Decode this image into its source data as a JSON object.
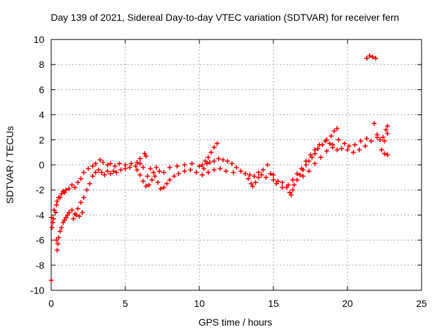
{
  "chart_data": {
    "type": "scatter",
    "title": "Day 139 of 2021, Sidereal Day-to-day VTEC variation (SDTVAR) for receiver fern",
    "xlabel": "GPS time / hours",
    "ylabel": "SDTVAR / TECUs",
    "xlim": [
      0,
      25
    ],
    "ylim": [
      -10,
      10
    ],
    "xticks": [
      0,
      5,
      10,
      15,
      20,
      25
    ],
    "yticks": [
      -10,
      -8,
      -6,
      -4,
      -2,
      0,
      2,
      4,
      6,
      8,
      10
    ],
    "xtick_labels": [
      "0",
      "5",
      "10",
      "15",
      "20",
      "25"
    ],
    "ytick_labels": [
      "-10",
      "-8",
      "-6",
      "-4",
      "-2",
      "0",
      "2",
      "4",
      "6",
      "8",
      "10"
    ],
    "grid": true,
    "marker": "plus",
    "series": [
      {
        "name": "SDTVAR",
        "color": "#ff0000",
        "points": [
          [
            0.0,
            -9.2
          ],
          [
            0.02,
            -4.2
          ],
          [
            0.05,
            -5.0
          ],
          [
            0.1,
            -4.6
          ],
          [
            0.15,
            -4.3
          ],
          [
            0.2,
            -3.6
          ],
          [
            0.3,
            -3.8
          ],
          [
            0.35,
            -3.2
          ],
          [
            0.4,
            -2.9
          ],
          [
            0.5,
            -2.6
          ],
          [
            0.6,
            -2.6
          ],
          [
            0.7,
            -2.3
          ],
          [
            0.8,
            -2.1
          ],
          [
            0.9,
            -2.2
          ],
          [
            1.0,
            -2.0
          ],
          [
            1.2,
            -1.9
          ],
          [
            1.4,
            -1.6
          ],
          [
            1.6,
            -1.8
          ],
          [
            1.8,
            -1.4
          ],
          [
            2.0,
            -1.1
          ],
          [
            2.2,
            -0.6
          ],
          [
            2.5,
            -0.3
          ],
          [
            2.8,
            -0.1
          ],
          [
            3.0,
            0.1
          ],
          [
            3.3,
            0.4
          ],
          [
            3.5,
            0.2
          ],
          [
            3.8,
            0.0
          ],
          [
            4.0,
            0.1
          ],
          [
            4.3,
            -0.1
          ],
          [
            4.6,
            0.1
          ],
          [
            5.0,
            0.0
          ],
          [
            5.4,
            0.1
          ],
          [
            5.8,
            0.2
          ],
          [
            6.0,
            0.5
          ],
          [
            6.3,
            0.9
          ],
          [
            6.4,
            0.7
          ],
          [
            0.35,
            -6.0
          ],
          [
            0.4,
            -6.8
          ],
          [
            0.45,
            -6.3
          ],
          [
            0.5,
            -5.8
          ],
          [
            0.6,
            -5.3
          ],
          [
            0.7,
            -5.0
          ],
          [
            0.8,
            -4.6
          ],
          [
            0.9,
            -4.4
          ],
          [
            1.0,
            -4.2
          ],
          [
            1.1,
            -4.0
          ],
          [
            1.2,
            -3.8
          ],
          [
            1.4,
            -3.6
          ],
          [
            1.6,
            -3.9
          ],
          [
            1.8,
            -3.5
          ],
          [
            2.0,
            -3.0
          ],
          [
            2.2,
            -2.6
          ],
          [
            2.4,
            -2.0
          ],
          [
            2.6,
            -1.5
          ],
          [
            2.8,
            -0.9
          ],
          [
            3.0,
            -0.6
          ],
          [
            3.2,
            -0.4
          ],
          [
            3.4,
            -0.6
          ],
          [
            3.6,
            -0.8
          ],
          [
            3.8,
            -0.5
          ],
          [
            4.0,
            -0.7
          ],
          [
            4.2,
            -0.5
          ],
          [
            4.4,
            -0.6
          ],
          [
            4.7,
            -0.4
          ],
          [
            5.0,
            -0.3
          ],
          [
            5.3,
            -0.2
          ],
          [
            5.7,
            -0.1
          ],
          [
            6.0,
            0.1
          ],
          [
            6.2,
            -0.2
          ],
          [
            1.5,
            -4.3
          ],
          [
            1.7,
            -4.0
          ],
          [
            1.9,
            -4.1
          ],
          [
            2.1,
            -3.8
          ],
          [
            5.8,
            -0.4
          ],
          [
            6.0,
            -0.8
          ],
          [
            6.2,
            -1.3
          ],
          [
            6.4,
            -1.7
          ],
          [
            6.6,
            -1.6
          ],
          [
            6.8,
            -1.2
          ],
          [
            7.0,
            -0.9
          ],
          [
            7.2,
            -1.4
          ],
          [
            7.4,
            -1.9
          ],
          [
            7.6,
            -1.8
          ],
          [
            7.8,
            -1.5
          ],
          [
            8.0,
            -1.2
          ],
          [
            8.3,
            -0.9
          ],
          [
            8.6,
            -0.7
          ],
          [
            9.0,
            -0.5
          ],
          [
            9.4,
            -0.4
          ],
          [
            9.8,
            -0.6
          ],
          [
            10.2,
            -0.8
          ],
          [
            6.5,
            -0.9
          ],
          [
            6.7,
            -0.3
          ],
          [
            6.9,
            -0.6
          ],
          [
            7.1,
            -0.2
          ],
          [
            7.3,
            -0.5
          ],
          [
            7.6,
            -0.6
          ],
          [
            8.0,
            -0.2
          ],
          [
            8.5,
            -0.1
          ],
          [
            9.0,
            0.0
          ],
          [
            9.5,
            0.1
          ],
          [
            10.0,
            -0.1
          ],
          [
            10.2,
            0.0
          ],
          [
            10.4,
            0.3
          ],
          [
            10.6,
            0.6
          ],
          [
            10.8,
            1.0
          ],
          [
            11.0,
            1.4
          ],
          [
            11.2,
            1.7
          ],
          [
            10.3,
            -0.3
          ],
          [
            10.5,
            0.1
          ],
          [
            10.7,
            0.2
          ],
          [
            11.0,
            0.3
          ],
          [
            11.3,
            0.5
          ],
          [
            11.6,
            0.4
          ],
          [
            11.9,
            0.3
          ],
          [
            12.2,
            0.1
          ],
          [
            12.5,
            -0.2
          ],
          [
            10.6,
            -0.6
          ],
          [
            11.0,
            -0.4
          ],
          [
            11.4,
            -0.3
          ],
          [
            11.8,
            -0.5
          ],
          [
            12.3,
            -0.6
          ],
          [
            12.8,
            -0.5
          ],
          [
            13.1,
            -0.7
          ],
          [
            13.3,
            -1.1
          ],
          [
            13.5,
            -1.5
          ],
          [
            13.6,
            -1.7
          ],
          [
            13.8,
            -1.4
          ],
          [
            14.0,
            -1.0
          ],
          [
            14.2,
            -0.8
          ],
          [
            14.5,
            -1.0
          ],
          [
            14.8,
            -0.7
          ],
          [
            15.0,
            -0.8
          ],
          [
            13.4,
            -0.8
          ],
          [
            13.7,
            -0.9
          ],
          [
            14.0,
            -0.6
          ],
          [
            14.3,
            -0.4
          ],
          [
            14.6,
            0.0
          ],
          [
            15.0,
            -1.2
          ],
          [
            15.3,
            -1.3
          ],
          [
            15.6,
            -1.4
          ],
          [
            15.9,
            -1.8
          ],
          [
            16.1,
            -2.2
          ],
          [
            16.2,
            -2.4
          ],
          [
            16.3,
            -2.0
          ],
          [
            16.4,
            -1.6
          ],
          [
            16.6,
            -1.2
          ],
          [
            16.8,
            -0.8
          ],
          [
            17.0,
            -0.4
          ],
          [
            17.2,
            0.0
          ],
          [
            17.4,
            0.3
          ],
          [
            17.6,
            0.6
          ],
          [
            17.8,
            0.9
          ],
          [
            18.0,
            1.3
          ],
          [
            18.3,
            1.6
          ],
          [
            18.6,
            2.0
          ],
          [
            18.9,
            2.3
          ],
          [
            19.1,
            2.7
          ],
          [
            19.3,
            2.9
          ],
          [
            15.2,
            -1.5
          ],
          [
            15.6,
            -1.8
          ],
          [
            16.0,
            -1.6
          ],
          [
            16.3,
            -1.2
          ],
          [
            16.6,
            -0.7
          ],
          [
            16.9,
            -0.3
          ],
          [
            17.2,
            0.3
          ],
          [
            17.5,
            0.8
          ],
          [
            17.8,
            1.2
          ],
          [
            18.1,
            1.6
          ],
          [
            18.5,
            1.9
          ],
          [
            18.8,
            1.7
          ],
          [
            19.0,
            1.4
          ],
          [
            19.3,
            1.2
          ],
          [
            19.6,
            1.3
          ],
          [
            20.0,
            1.2
          ],
          [
            20.4,
            1.0
          ],
          [
            20.8,
            1.2
          ],
          [
            21.2,
            1.5
          ],
          [
            21.6,
            1.9
          ],
          [
            22.0,
            2.2
          ],
          [
            17.0,
            -0.9
          ],
          [
            17.4,
            -0.5
          ],
          [
            17.8,
            0.1
          ],
          [
            18.2,
            0.6
          ],
          [
            18.6,
            1.1
          ],
          [
            19.0,
            1.6
          ],
          [
            19.4,
            2.0
          ],
          [
            19.8,
            1.7
          ],
          [
            20.1,
            1.5
          ],
          [
            20.5,
            1.6
          ],
          [
            20.9,
            1.9
          ],
          [
            21.3,
            2.1
          ],
          [
            21.8,
            3.3
          ],
          [
            22.0,
            2.4
          ],
          [
            22.2,
            2.0
          ],
          [
            21.3,
            8.5
          ],
          [
            21.5,
            8.7
          ],
          [
            21.7,
            8.6
          ],
          [
            21.9,
            8.5
          ],
          [
            22.3,
            1.2
          ],
          [
            22.5,
            0.9
          ],
          [
            22.7,
            0.8
          ],
          [
            22.4,
            2.2
          ],
          [
            22.6,
            2.8
          ],
          [
            22.7,
            2.5
          ],
          [
            22.7,
            3.1
          ],
          [
            22.5,
            1.9
          ]
        ]
      }
    ]
  }
}
